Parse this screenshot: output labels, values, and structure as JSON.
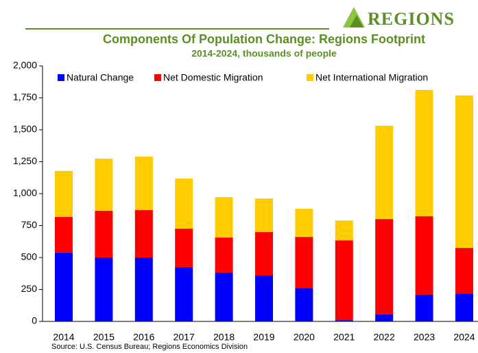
{
  "brand": "Regions",
  "chart_data": {
    "type": "stacked_bar",
    "title": "Components Of Population Change: Regions Footprint",
    "subtitle": "2014-2024, thousands of people",
    "source": "Source: U.S. Census Bureau; Regions Economics Division",
    "categories": [
      "2014",
      "2015",
      "2016",
      "2017",
      "2018",
      "2019",
      "2020",
      "2021",
      "2022",
      "2023",
      "2024"
    ],
    "series": [
      {
        "name": "Natural Change",
        "color": "#0000ff",
        "values": [
          538,
          500,
          500,
          425,
          382,
          360,
          258,
          10,
          54,
          210,
          215
        ]
      },
      {
        "name": "Net Domestic Migration",
        "color": "#ff0000",
        "values": [
          280,
          366,
          371,
          301,
          274,
          339,
          403,
          624,
          747,
          613,
          360
        ]
      },
      {
        "name": "Net International Migration",
        "color": "#ffcc00",
        "values": [
          360,
          408,
          419,
          392,
          317,
          263,
          221,
          156,
          731,
          989,
          1194
        ]
      }
    ],
    "ylim": [
      0,
      2000
    ],
    "yticks": [
      0,
      250,
      500,
      750,
      {
        "value": 1000,
        "label": "1,000"
      },
      {
        "value": 1250,
        "label": "1,250"
      },
      {
        "value": 1500,
        "label": "1,500"
      },
      {
        "value": 1750,
        "label": "1,750"
      },
      {
        "value": 2000,
        "label": "2,000"
      }
    ],
    "legend": "top"
  }
}
